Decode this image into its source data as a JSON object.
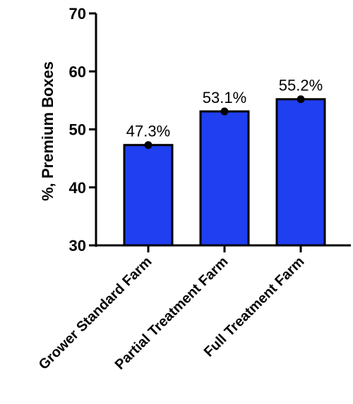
{
  "chart_data": {
    "type": "bar",
    "categories": [
      "Grower Standard Farm",
      "Partial Treatment Farm",
      "Full Treatment Farm"
    ],
    "values": [
      47.3,
      53.1,
      55.2
    ],
    "data_labels": [
      "47.3%",
      "53.1%",
      "55.2%"
    ],
    "title": "",
    "xlabel": "",
    "ylabel": "%, Premium Boxes",
    "ylim": [
      30,
      70
    ],
    "yticks": [
      30,
      40,
      50,
      60,
      70
    ],
    "ytick_labels": [
      "30",
      "40",
      "50",
      "60",
      "70"
    ],
    "grid": false,
    "legend": "none",
    "bar_color": "#1f3ff0",
    "bar_edge_color": "#000000",
    "point_color": "#000000"
  }
}
